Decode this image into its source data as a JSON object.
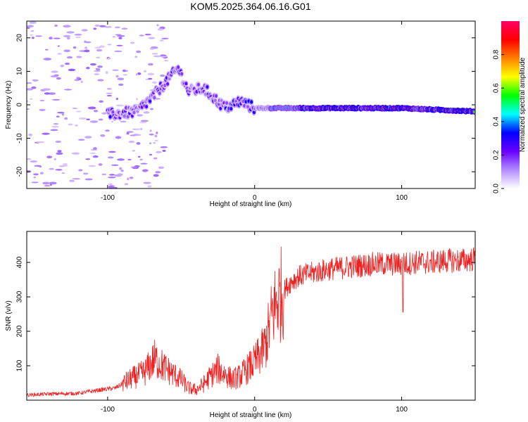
{
  "title": "KOM5.2025.364.06.16.G01",
  "chart_data": [
    {
      "type": "heatmap",
      "name": "spectrogram",
      "xlabel": "Height of straight line (km)",
      "ylabel": "Frequency (Hz)",
      "xlim": [
        -155,
        150
      ],
      "ylim": [
        -25,
        25
      ],
      "xticks": [
        -100,
        0,
        100
      ],
      "yticks": [
        -20,
        -10,
        0,
        10,
        20
      ],
      "colorbar": {
        "label": "Normalized spectral amplitude",
        "range": [
          0,
          1
        ],
        "ticks": [
          0.0,
          0.2,
          0.4,
          0.6,
          0.8
        ],
        "colors": [
          "#ffffff",
          "#b38cff",
          "#6a00ff",
          "#0000ff",
          "#00ffff",
          "#00ff00",
          "#ffff00",
          "#ff8000",
          "#ff0000",
          "#ff0066"
        ]
      },
      "ridge": {
        "description_points_x": [
          -100,
          -80,
          -70,
          -60,
          -52,
          -45,
          -35,
          -25,
          -20,
          -10,
          0,
          20,
          50,
          100,
          150
        ],
        "frequency_hz": [
          -3,
          -2,
          2,
          7,
          11,
          4,
          5,
          1,
          -1,
          1,
          -1,
          -1,
          -1,
          -1,
          -2
        ]
      }
    },
    {
      "type": "line",
      "name": "snr",
      "xlabel": "Height of straight line (km)",
      "ylabel": "SNR (v/v)",
      "xlim": [
        -155,
        150
      ],
      "ylim": [
        0,
        490
      ],
      "xticks": [
        -100,
        0,
        100
      ],
      "yticks": [
        100,
        200,
        300,
        400
      ],
      "color": "#ee2222",
      "series": [
        {
          "name": "SNR",
          "x": [
            -155,
            -140,
            -120,
            -105,
            -95,
            -85,
            -75,
            -68,
            -60,
            -50,
            -45,
            -40,
            -35,
            -30,
            -25,
            -20,
            -15,
            -10,
            -5,
            0,
            5,
            8,
            10,
            12,
            15,
            20,
            25,
            30,
            40,
            50,
            60,
            70,
            80,
            90,
            100,
            110,
            120,
            130,
            140,
            150
          ],
          "y": [
            15,
            18,
            20,
            30,
            35,
            60,
            80,
            120,
            90,
            60,
            35,
            30,
            45,
            70,
            90,
            75,
            60,
            70,
            90,
            110,
            140,
            170,
            210,
            250,
            290,
            320,
            345,
            360,
            370,
            380,
            385,
            390,
            395,
            395,
            395,
            400,
            400,
            405,
            405,
            410
          ]
        }
      ]
    }
  ]
}
